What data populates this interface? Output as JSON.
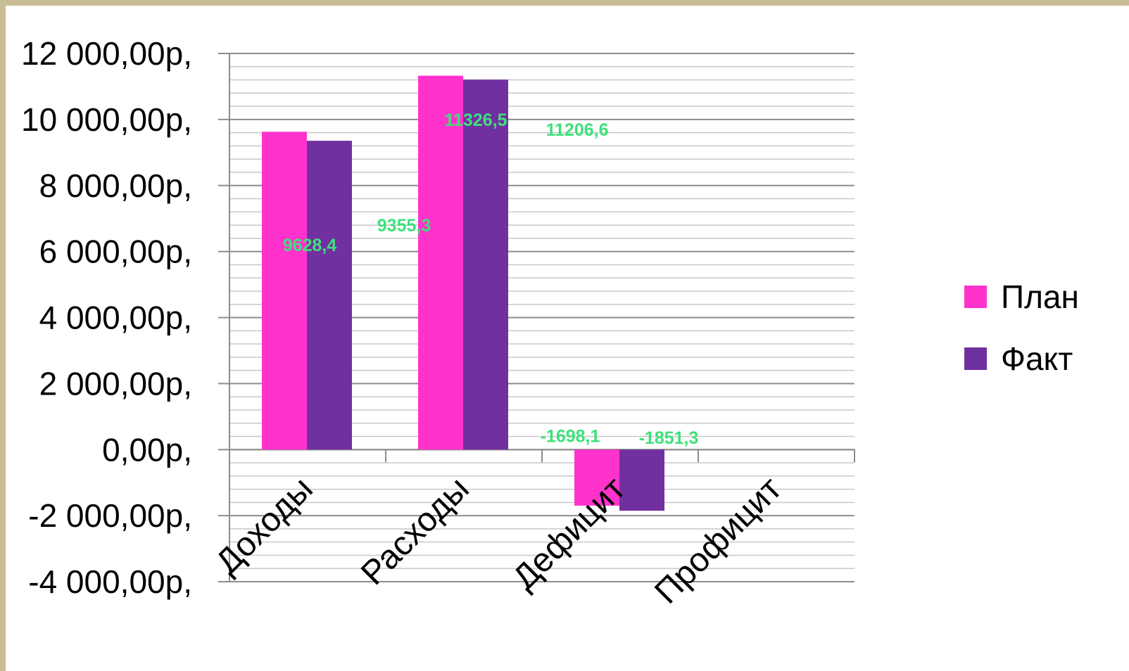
{
  "chart_data": {
    "type": "bar",
    "categories": [
      "Доходы",
      "Расходы",
      "Дефицит",
      "Профицит"
    ],
    "series": [
      {
        "name": "План",
        "color": "#ff33cc",
        "values": [
          9628.4,
          11326.5,
          -1698.1,
          null
        ]
      },
      {
        "name": "Факт",
        "color": "#7030a0",
        "values": [
          9355.3,
          11206.6,
          -1851.3,
          null
        ]
      }
    ],
    "ylim": [
      -4000,
      12000
    ],
    "yticks": [
      12000,
      10000,
      8000,
      6000,
      4000,
      2000,
      0,
      -2000,
      -4000
    ],
    "ytick_labels": [
      "12 000,00р,",
      "10 000,00р,",
      "8 000,00р,",
      "6 000,00р,",
      "4 000,00р,",
      "2 000,00р,",
      "0,00р,",
      "-2 000,00р,",
      "-4 000,00р,"
    ],
    "data_labels": [
      "9628,4",
      "9355,3",
      "11326,5",
      "11206,6",
      "-1698,1",
      "-1851,3"
    ],
    "data_label_color": "#3ee07a",
    "grid": true,
    "legend": "right"
  }
}
